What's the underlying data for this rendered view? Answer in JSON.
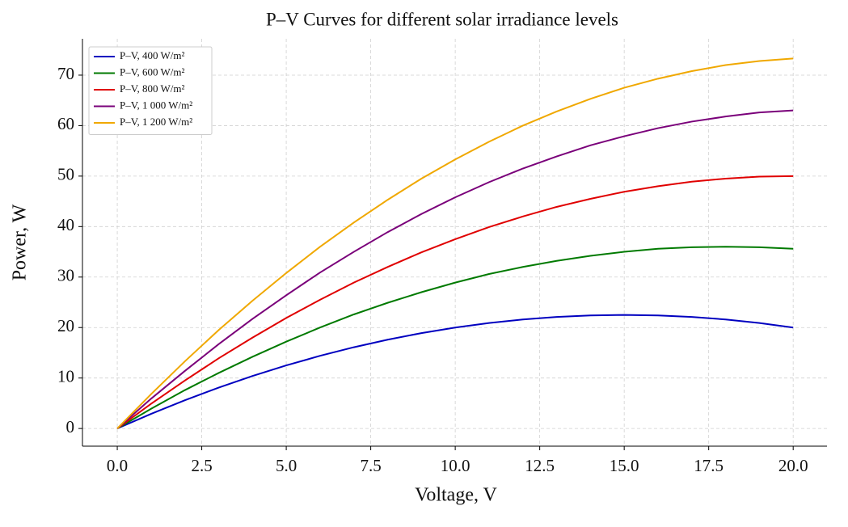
{
  "chart_data": {
    "type": "line",
    "title": "P–V Curves for different solar irradiance levels",
    "x_label": "Voltage, V",
    "y_label": "Power, W",
    "x": [
      0,
      1,
      2,
      3,
      4,
      5,
      6,
      7,
      8,
      9,
      10,
      11,
      12,
      13,
      14,
      15,
      16,
      17,
      18,
      19,
      20
    ],
    "series": [
      {
        "name": "P–V, 400 W/m²",
        "color": "#0000c0",
        "values": [
          0,
          2.9,
          5.6,
          8.1,
          10.4,
          12.5,
          14.4,
          16.1,
          17.6,
          18.9,
          20,
          20.9,
          21.6,
          22.1,
          22.4,
          22.5,
          22.4,
          22.1,
          21.6,
          20.9,
          20
        ]
      },
      {
        "name": "P–V, 600 W/m²",
        "color": "#007a00",
        "values": [
          0,
          3.9,
          7.6,
          11.0,
          14.2,
          17.2,
          20.0,
          22.6,
          24.9,
          27.0,
          28.9,
          30.6,
          32.0,
          33.2,
          34.2,
          35.0,
          35.6,
          35.9,
          36.0,
          35.9,
          35.6
        ]
      },
      {
        "name": "P–V, 800 W/m²",
        "color": "#e00000",
        "values": [
          0,
          4.9,
          9.5,
          13.9,
          18,
          21.9,
          25.5,
          28.9,
          32,
          34.9,
          37.5,
          39.9,
          42,
          43.9,
          45.5,
          46.9,
          48,
          48.9,
          49.5,
          49.9,
          50
        ]
      },
      {
        "name": "P–V, 1 000 W/m²",
        "color": "#7a007a",
        "values": [
          0,
          5.9,
          11.4,
          16.7,
          21.7,
          26.4,
          30.9,
          35.0,
          38.9,
          42.5,
          45.8,
          48.8,
          51.5,
          53.9,
          56.1,
          57.9,
          59.5,
          60.8,
          61.8,
          62.6,
          63.0
        ]
      },
      {
        "name": "P–V, 1 200 W/m²",
        "color": "#f0a800",
        "values": [
          0,
          6.8,
          13.3,
          19.5,
          25.3,
          30.8,
          36,
          40.8,
          45.3,
          49.5,
          53.3,
          56.8,
          60,
          62.8,
          65.3,
          67.5,
          69.3,
          70.8,
          72,
          72.8,
          73.3
        ]
      }
    ],
    "xlim": [
      -1.03,
      21.0
    ],
    "ylim": [
      -3.5,
      77.2
    ],
    "xticks": [
      {
        "value": 0,
        "label": "0.0"
      },
      2.5,
      {
        "value": 5,
        "label": "5.0"
      },
      7.5,
      {
        "value": 10,
        "label": "10.0"
      },
      12.5,
      {
        "value": 15,
        "label": "15.0"
      },
      17.5,
      {
        "value": 20,
        "label": "20.0"
      }
    ],
    "yticks": [
      0,
      10,
      20,
      30,
      40,
      50,
      60,
      70
    ],
    "grid": true,
    "legend": "upper-left"
  }
}
